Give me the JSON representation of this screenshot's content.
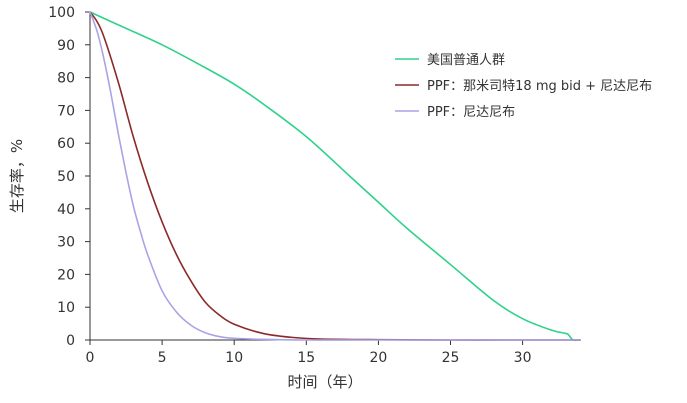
{
  "chart_data": {
    "type": "line",
    "xlabel": "时间（年）",
    "ylabel": "生存率，%",
    "xlim": [
      0,
      34
    ],
    "ylim": [
      0,
      100
    ],
    "xticks": [
      "0",
      "5",
      "10",
      "15",
      "20",
      "25",
      "30"
    ],
    "yticks": [
      "0",
      "10",
      "20",
      "30",
      "40",
      "50",
      "60",
      "70",
      "80",
      "90",
      "100"
    ],
    "grid": false,
    "legend": "top-right",
    "series": [
      {
        "name": "美国普通人群",
        "color": "#2fd28a",
        "x": [
          0,
          2,
          5,
          8,
          10,
          12,
          15,
          18,
          20,
          22,
          25,
          28,
          30,
          32,
          33,
          33.2,
          33.5,
          34
        ],
        "values": [
          100,
          96,
          90,
          83,
          78,
          72,
          62,
          50,
          42,
          34,
          23,
          12,
          6.5,
          3,
          2,
          1.5,
          0,
          0
        ]
      },
      {
        "name": "PPF：那米司特18 mg bid + 尼达尼布",
        "color": "#8c2a2a",
        "x": [
          0,
          0.5,
          1,
          2,
          3,
          4,
          5,
          6,
          7,
          8,
          9,
          10,
          12,
          14,
          16,
          20,
          25,
          30,
          34
        ],
        "values": [
          100,
          97,
          92,
          78,
          62,
          48,
          36,
          26,
          18,
          11.5,
          7.5,
          4.8,
          2,
          0.8,
          0.3,
          0.1,
          0,
          0,
          0
        ]
      },
      {
        "name": "PPF：尼达尼布",
        "color": "#a8a4e6",
        "x": [
          0,
          0.5,
          1,
          1.5,
          2,
          2.5,
          3,
          3.5,
          4,
          5,
          6,
          7,
          8,
          9,
          10,
          12,
          15,
          20,
          34
        ],
        "values": [
          100,
          94,
          85,
          74,
          62,
          51,
          41,
          33,
          26,
          15,
          8.5,
          4.5,
          2.2,
          1,
          0.5,
          0.2,
          0,
          0,
          0
        ]
      }
    ]
  }
}
